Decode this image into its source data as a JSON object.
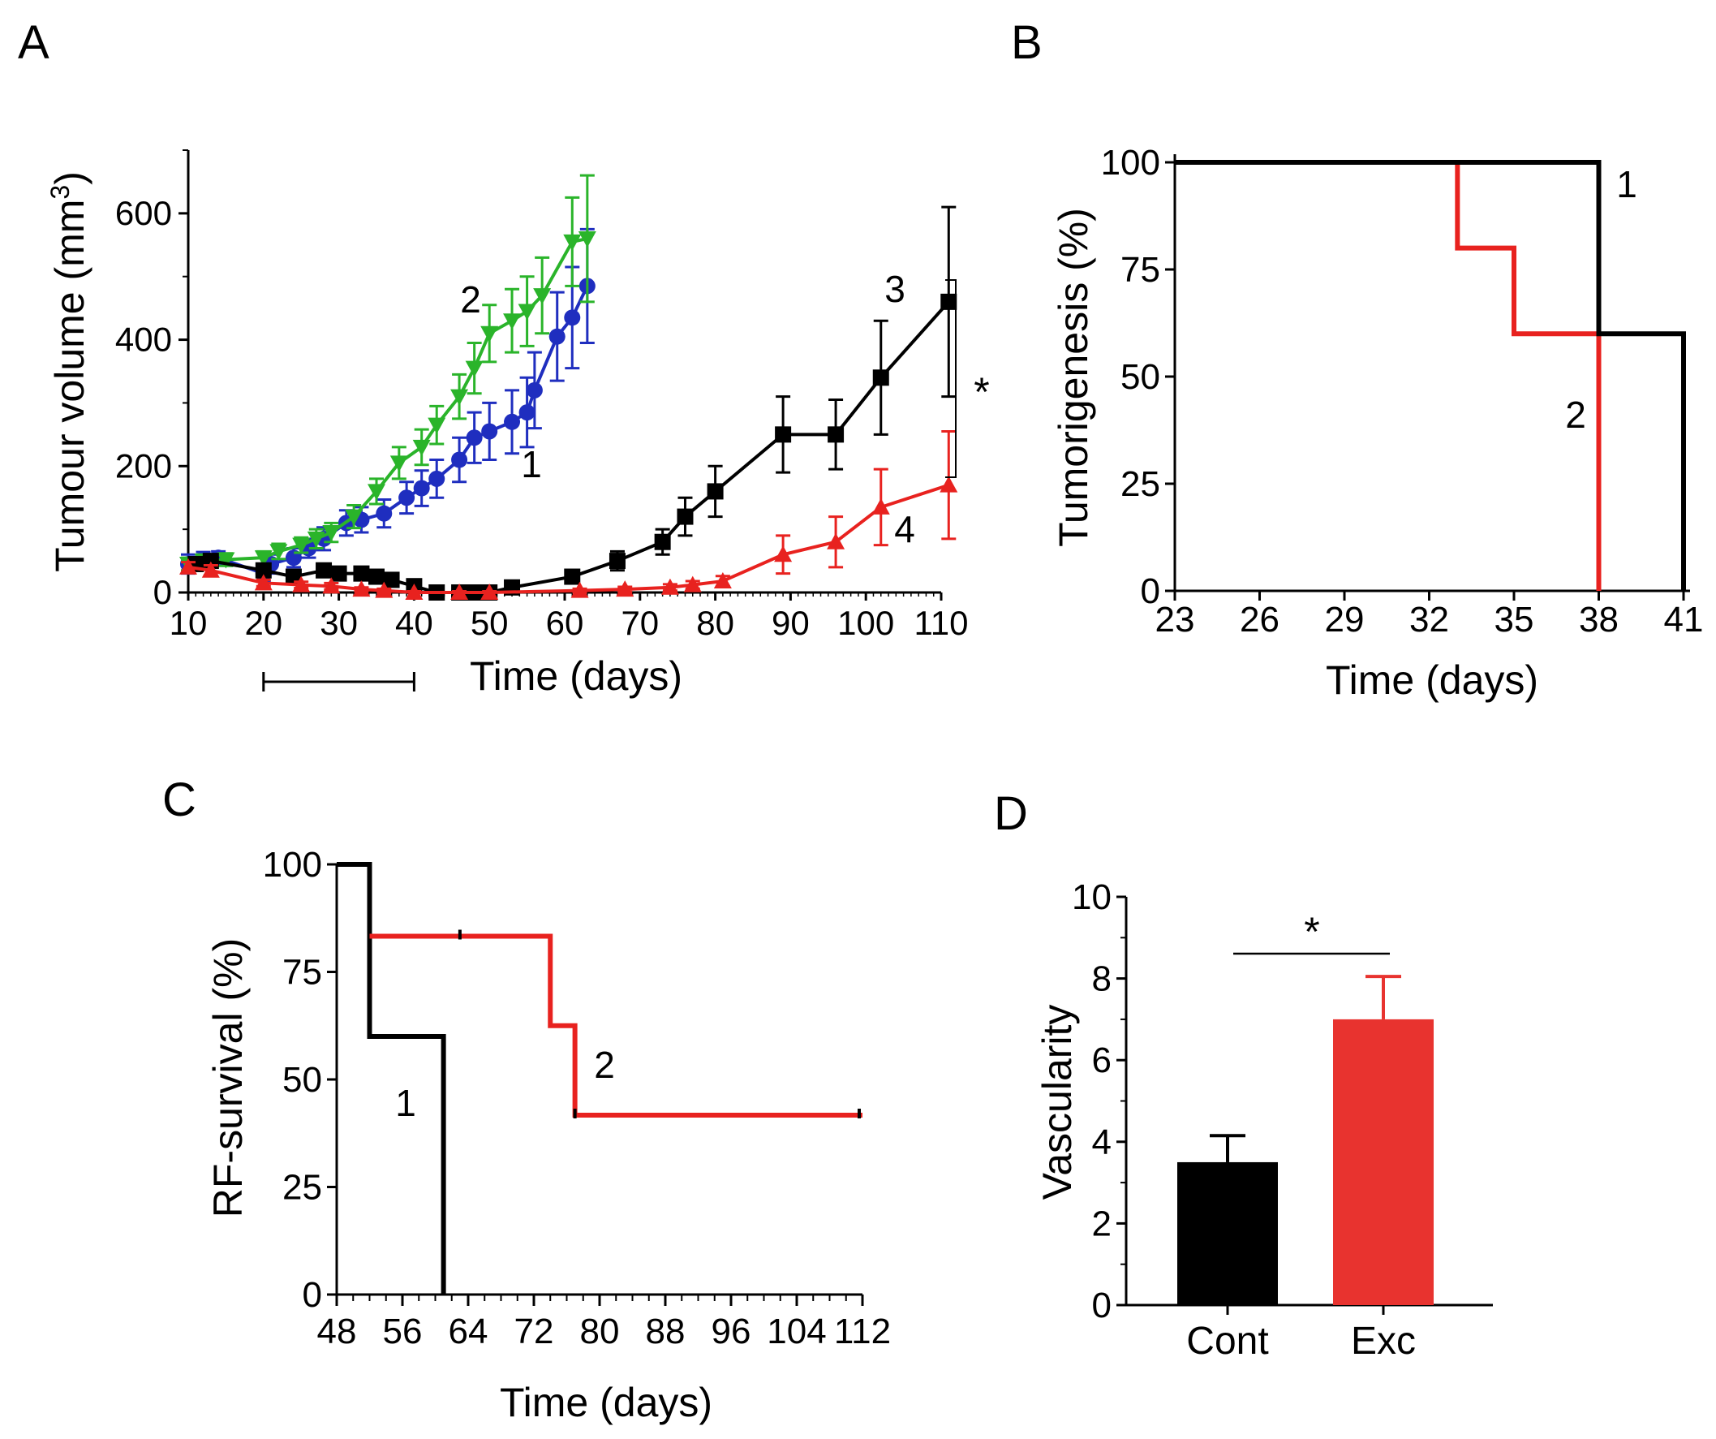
{
  "colors": {
    "black": "#000000",
    "red": "#e8221f",
    "green": "#2ab42a",
    "blue": "#1f2ebf",
    "darkblue": "#1f2ebf",
    "bar_black": "#000000",
    "bar_red": "#e8332f"
  },
  "chart_data": [
    {
      "panel": "A",
      "type": "line",
      "title": "",
      "xlabel": "Time (days)",
      "ylabel": "Tumour volume (mm³)",
      "ylabel_main": "Tumour volume (mm",
      "ylabel_sup": "3",
      "ylabel_end": ")",
      "xlim": [
        10,
        110
      ],
      "ylim": [
        0,
        700
      ],
      "xticks": [
        "10",
        "20",
        "30",
        "40",
        "50",
        "60",
        "70",
        "80",
        "90",
        "100",
        "110"
      ],
      "yticks": [
        "0",
        "200",
        "400",
        "600"
      ],
      "treatment_period": [
        20,
        40
      ],
      "significance": "*",
      "series": [
        {
          "name": "1",
          "label": "1",
          "color": "#1f2ebf",
          "marker": "circle",
          "x": [
            10,
            12,
            14,
            20,
            21,
            24,
            26,
            28,
            31,
            33,
            36,
            39,
            41,
            43,
            46,
            48,
            50,
            53,
            55,
            56,
            59,
            61,
            63
          ],
          "y": [
            45,
            52,
            55,
            30,
            45,
            55,
            70,
            85,
            110,
            115,
            125,
            150,
            165,
            180,
            210,
            245,
            255,
            270,
            285,
            320,
            405,
            435,
            485
          ],
          "err": [
            15,
            12,
            10,
            12,
            15,
            15,
            15,
            18,
            20,
            20,
            22,
            25,
            28,
            30,
            35,
            40,
            45,
            50,
            55,
            60,
            70,
            80,
            90
          ]
        },
        {
          "name": "2",
          "label": "2",
          "color": "#2ab42a",
          "marker": "triangle-down",
          "x": [
            10,
            12,
            15,
            20,
            22,
            25,
            27,
            29,
            32,
            35,
            38,
            41,
            43,
            46,
            48,
            50,
            53,
            55,
            57,
            61,
            63
          ],
          "y": [
            45,
            50,
            52,
            55,
            65,
            75,
            85,
            95,
            120,
            160,
            205,
            230,
            265,
            310,
            355,
            410,
            430,
            445,
            470,
            555,
            560
          ],
          "err": [
            10,
            10,
            10,
            10,
            12,
            12,
            15,
            15,
            18,
            20,
            25,
            28,
            30,
            35,
            40,
            45,
            50,
            55,
            60,
            70,
            100
          ]
        },
        {
          "name": "3",
          "label": "3",
          "color": "#000000",
          "marker": "square",
          "x": [
            11,
            13,
            20,
            24,
            28,
            30,
            33,
            35,
            37,
            40,
            43,
            46,
            48,
            50,
            53,
            61,
            67,
            73,
            76,
            80,
            89,
            96,
            102,
            111
          ],
          "y": [
            45,
            50,
            35,
            25,
            35,
            30,
            30,
            25,
            20,
            10,
            0,
            0,
            0,
            0,
            8,
            25,
            50,
            80,
            120,
            160,
            250,
            250,
            340,
            460
          ],
          "err": [
            10,
            10,
            8,
            8,
            10,
            8,
            8,
            8,
            5,
            5,
            3,
            3,
            3,
            3,
            5,
            10,
            15,
            20,
            30,
            40,
            60,
            55,
            90,
            150
          ]
        },
        {
          "name": "4",
          "label": "4",
          "color": "#e8221f",
          "marker": "triangle-up",
          "x": [
            10,
            13,
            20,
            25,
            29,
            33,
            36,
            40,
            46,
            50,
            62,
            68,
            74,
            77,
            81,
            89,
            96,
            102,
            111
          ],
          "y": [
            40,
            35,
            15,
            12,
            10,
            5,
            3,
            0,
            0,
            0,
            3,
            5,
            8,
            12,
            18,
            60,
            80,
            135,
            170
          ],
          "err": [
            8,
            8,
            5,
            5,
            5,
            3,
            3,
            2,
            2,
            2,
            3,
            4,
            5,
            6,
            8,
            30,
            40,
            60,
            85
          ]
        }
      ]
    },
    {
      "panel": "B",
      "type": "line",
      "subtype": "step",
      "xlabel": "Time (days)",
      "ylabel": "Tumorigenesis (%)",
      "xlim": [
        23,
        41
      ],
      "ylim": [
        0,
        100
      ],
      "xticks": [
        "23",
        "26",
        "29",
        "32",
        "35",
        "38",
        "41"
      ],
      "yticks": [
        "0",
        "25",
        "50",
        "75",
        "100"
      ],
      "series": [
        {
          "name": "1",
          "label": "1",
          "color": "#000000",
          "x": [
            23,
            38,
            38,
            41,
            41
          ],
          "y": [
            100,
            100,
            60,
            60,
            0
          ]
        },
        {
          "name": "2",
          "label": "2",
          "color": "#e8221f",
          "x": [
            33,
            33,
            35,
            35,
            38,
            38
          ],
          "y": [
            100,
            80,
            80,
            60,
            60,
            0
          ]
        }
      ]
    },
    {
      "panel": "C",
      "type": "line",
      "subtype": "step",
      "xlabel": "Time (days)",
      "ylabel": "RF-survival (%)",
      "xlim": [
        48,
        112
      ],
      "ylim": [
        0,
        100
      ],
      "xticks": [
        "48",
        "56",
        "64",
        "72",
        "80",
        "88",
        "96",
        "104",
        "112"
      ],
      "yticks": [
        "0",
        "25",
        "50",
        "75",
        "100"
      ],
      "series": [
        {
          "name": "1",
          "label": "1",
          "color": "#000000",
          "x": [
            48,
            52,
            52,
            61,
            61
          ],
          "y": [
            100,
            100,
            60,
            60,
            0
          ]
        },
        {
          "name": "2",
          "label": "2",
          "color": "#e8221f",
          "x": [
            52,
            74,
            74,
            77,
            77,
            112
          ],
          "y": [
            83.3,
            83.3,
            62.5,
            62.5,
            41.7,
            41.7
          ]
        }
      ]
    },
    {
      "panel": "D",
      "type": "bar",
      "xlabel": "",
      "ylabel": "Vascularity",
      "categories": [
        "Cont",
        "Exc"
      ],
      "values": [
        3.5,
        7.0
      ],
      "errors": [
        0.65,
        1.05
      ],
      "colors": [
        "#000000",
        "#e8332f"
      ],
      "ylim": [
        0,
        10
      ],
      "yticks": [
        "0",
        "2",
        "4",
        "6",
        "8",
        "10"
      ],
      "significance": "*"
    }
  ]
}
